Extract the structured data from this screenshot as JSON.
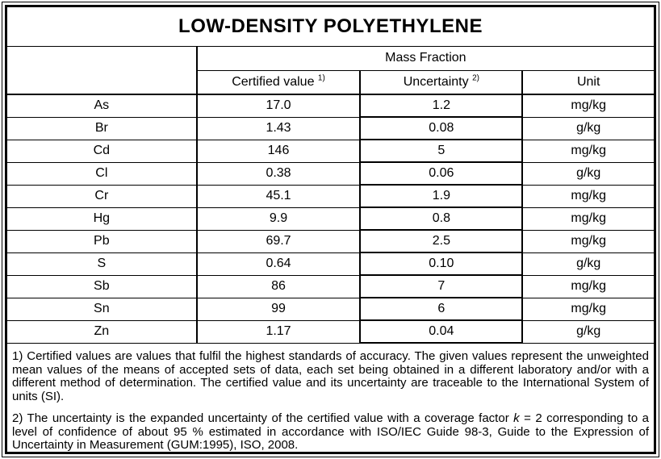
{
  "title": "LOW-DENSITY POLYETHYLENE",
  "table": {
    "group_header": "Mass Fraction",
    "sub_headers": {
      "certified_value": {
        "label": "Certified value",
        "sup": "1)"
      },
      "uncertainty": {
        "label": "Uncertainty",
        "sup": "2)"
      },
      "unit": {
        "label": "Unit"
      }
    },
    "rows": [
      {
        "element": "As",
        "certified_value": "17.0",
        "uncertainty": "1.2",
        "unit": "mg/kg"
      },
      {
        "element": "Br",
        "certified_value": "1.43",
        "uncertainty": "0.08",
        "unit": "g/kg"
      },
      {
        "element": "Cd",
        "certified_value": "146",
        "uncertainty": "5",
        "unit": "mg/kg"
      },
      {
        "element": "Cl",
        "certified_value": "0.38",
        "uncertainty": "0.06",
        "unit": "g/kg"
      },
      {
        "element": "Cr",
        "certified_value": "45.1",
        "uncertainty": "1.9",
        "unit": "mg/kg"
      },
      {
        "element": "Hg",
        "certified_value": "9.9",
        "uncertainty": "0.8",
        "unit": "mg/kg"
      },
      {
        "element": "Pb",
        "certified_value": "69.7",
        "uncertainty": "2.5",
        "unit": "mg/kg"
      },
      {
        "element": "S",
        "certified_value": "0.64",
        "uncertainty": "0.10",
        "unit": "g/kg"
      },
      {
        "element": "Sb",
        "certified_value": "86",
        "uncertainty": "7",
        "unit": "mg/kg"
      },
      {
        "element": "Sn",
        "certified_value": "99",
        "uncertainty": "6",
        "unit": "mg/kg"
      },
      {
        "element": "Zn",
        "certified_value": "1.17",
        "uncertainty": "0.04",
        "unit": "g/kg"
      }
    ]
  },
  "footnotes": {
    "note1": "1) Certified values are values that fulfil the highest standards of accuracy. The given values represent the unweighted mean values of the means of accepted sets of data, each set being obtained in a different laboratory and/or with a different method of determination. The certified value and its uncertainty are traceable to the International System of units (SI).",
    "note2_before_k": "2) The uncertainty is the expanded uncertainty of the certified value with a coverage factor ",
    "note2_k": "k",
    "note2_after_k": " = 2 corresponding to a level of confidence of about 95 % estimated in accordance with ISO/IEC Guide 98-3, Guide to the Expression of Uncertainty in Measurement (GUM:1995), ISO, 2008."
  },
  "colors": {
    "border": "#000000",
    "text": "#000000",
    "background": "#ffffff"
  }
}
